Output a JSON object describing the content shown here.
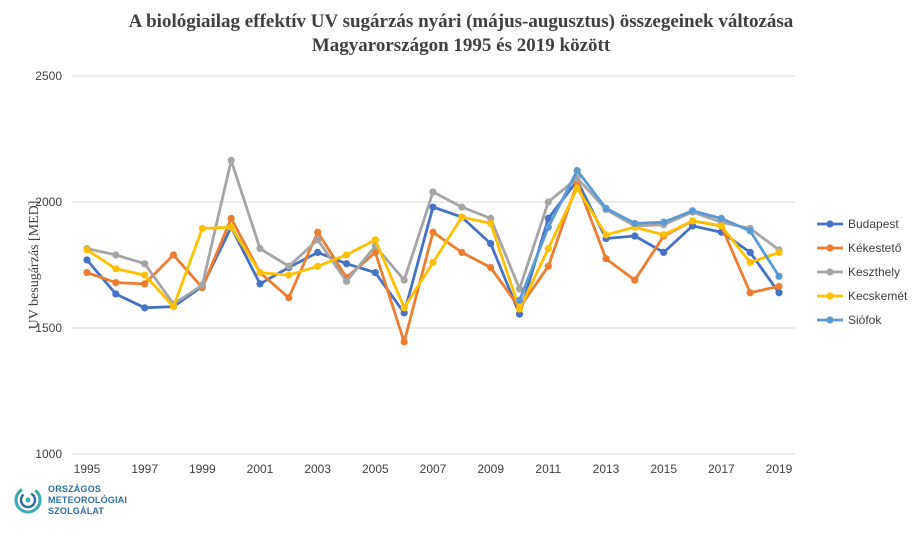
{
  "chart_data": {
    "type": "line",
    "title_lines": [
      "A biológiailag effektív UV sugárzás nyári (május-augusztus) összegeinek változása",
      "Magyarországon 1995 és 2019 között"
    ],
    "ylabel": "UV besugárzás [MED]",
    "xlabel": "",
    "ylim": [
      1000,
      2500
    ],
    "yticks": [
      "1000",
      "1500",
      "2000",
      "2500"
    ],
    "grid": true,
    "legend_position": "right",
    "x": [
      1995,
      1996,
      1997,
      1998,
      1999,
      2000,
      2001,
      2002,
      2003,
      2004,
      2005,
      2006,
      2007,
      2008,
      2009,
      2010,
      2011,
      2012,
      2013,
      2014,
      2015,
      2016,
      2017,
      2018,
      2019
    ],
    "xtick_labels": [
      "1995",
      "1997",
      "1999",
      "2001",
      "2003",
      "2005",
      "2007",
      "2009",
      "2011",
      "2013",
      "2015",
      "2017",
      "2019"
    ],
    "series": [
      {
        "name": "Budapest",
        "color": "#4472c4",
        "values": [
          1770,
          1635,
          1580,
          1585,
          1665,
          1900,
          1675,
          1740,
          1800,
          1755,
          1720,
          1560,
          1980,
          1940,
          1835,
          1555,
          1935,
          2085,
          1855,
          1865,
          1800,
          1905,
          1880,
          1800,
          1640
        ]
      },
      {
        "name": "Kékestető",
        "color": "#ed7d31",
        "values": [
          1720,
          1680,
          1675,
          1790,
          1660,
          1935,
          1720,
          1620,
          1880,
          1700,
          1800,
          1445,
          1880,
          1800,
          1740,
          1580,
          1745,
          2075,
          1775,
          1690,
          1865,
          1925,
          1905,
          1640,
          1665
        ]
      },
      {
        "name": "Keszthely",
        "color": "#a5a5a5",
        "values": [
          1815,
          1790,
          1755,
          1595,
          1670,
          2165,
          1815,
          1745,
          1850,
          1685,
          1825,
          1690,
          2040,
          1980,
          1935,
          1655,
          2000,
          2095,
          1970,
          1905,
          1910,
          1960,
          1920,
          1895,
          1810
        ]
      },
      {
        "name": "Kecskemét",
        "color": "#ffc000",
        "values": [
          1810,
          1735,
          1710,
          1585,
          1895,
          1900,
          1720,
          1710,
          1745,
          1790,
          1850,
          1580,
          1760,
          1940,
          1915,
          1575,
          1815,
          2055,
          1870,
          1900,
          1870,
          1925,
          1905,
          1760,
          1800
        ]
      },
      {
        "name": "Siófok",
        "color": "#5b9bd5",
        "values": [
          null,
          null,
          null,
          null,
          null,
          null,
          null,
          null,
          null,
          null,
          null,
          null,
          null,
          null,
          null,
          1610,
          1900,
          2125,
          1975,
          1915,
          1920,
          1965,
          1935,
          1885,
          1705
        ]
      }
    ]
  },
  "logo": {
    "lines": [
      "ORSZÁGOS",
      "METEOROLÓGIAI",
      "SZOLGÁLAT"
    ],
    "color": "#2f6f9f",
    "icon": "swirl-logo-icon"
  }
}
